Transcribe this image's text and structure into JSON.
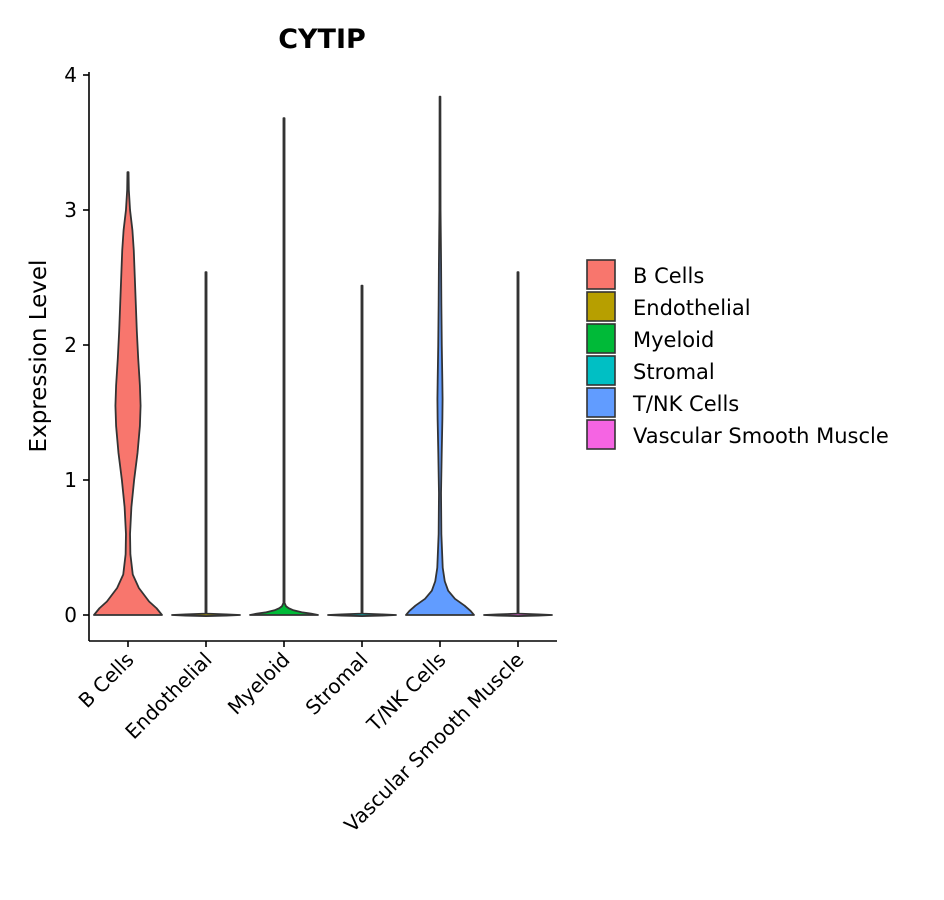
{
  "chart_data": {
    "type": "violin",
    "title": "CYTIP",
    "xlabel": "",
    "ylabel": "Expression Level",
    "ylim": [
      -0.19,
      4.05
    ],
    "yticks": [
      0,
      1,
      2,
      3,
      4
    ],
    "categories": [
      "B Cells",
      "Endothelial",
      "Myeloid",
      "Stromal",
      "T/NK Cells",
      "Vascular Smooth Muscle"
    ],
    "legend": {
      "position": "right",
      "entries": [
        "B Cells",
        "Endothelial",
        "Myeloid",
        "Stromal",
        "T/NK Cells",
        "Vascular Smooth Muscle"
      ]
    },
    "series": [
      {
        "name": "B Cells",
        "color": "#F8766D",
        "max": 3.28,
        "profile": [
          [
            0,
            0.5
          ],
          [
            0.05,
            0.42
          ],
          [
            0.1,
            0.31
          ],
          [
            0.2,
            0.16
          ],
          [
            0.3,
            0.07
          ],
          [
            0.45,
            0.035
          ],
          [
            0.6,
            0.03
          ],
          [
            0.8,
            0.05
          ],
          [
            1.0,
            0.09
          ],
          [
            1.2,
            0.14
          ],
          [
            1.4,
            0.175
          ],
          [
            1.55,
            0.185
          ],
          [
            1.7,
            0.175
          ],
          [
            1.9,
            0.15
          ],
          [
            2.1,
            0.13
          ],
          [
            2.3,
            0.115
          ],
          [
            2.5,
            0.1
          ],
          [
            2.7,
            0.085
          ],
          [
            2.85,
            0.065
          ],
          [
            3.0,
            0.03
          ],
          [
            3.15,
            0.012
          ],
          [
            3.28,
            0.008
          ]
        ]
      },
      {
        "name": "Endothelial",
        "color": "#B79F00",
        "max": 2.54,
        "profile": [
          [
            -0.008,
            0.008
          ],
          [
            -0.004,
            0.3
          ],
          [
            0,
            0.5
          ],
          [
            0.004,
            0.3
          ],
          [
            0.01,
            0.008
          ],
          [
            2.54,
            0.008
          ]
        ]
      },
      {
        "name": "Myeloid",
        "color": "#00BA38",
        "max": 3.68,
        "profile": [
          [
            0,
            0.5
          ],
          [
            0.01,
            0.4
          ],
          [
            0.02,
            0.26
          ],
          [
            0.035,
            0.14
          ],
          [
            0.05,
            0.07
          ],
          [
            0.065,
            0.03
          ],
          [
            0.09,
            0.008
          ],
          [
            3.68,
            0.008
          ]
        ]
      },
      {
        "name": "Stromal",
        "color": "#00BFC4",
        "max": 2.44,
        "profile": [
          [
            -0.008,
            0.008
          ],
          [
            -0.004,
            0.3
          ],
          [
            0,
            0.5
          ],
          [
            0.004,
            0.3
          ],
          [
            0.01,
            0.008
          ],
          [
            2.44,
            0.008
          ]
        ]
      },
      {
        "name": "T/NK Cells",
        "color": "#619CFF",
        "max": 3.84,
        "profile": [
          [
            0,
            0.5
          ],
          [
            0.03,
            0.45
          ],
          [
            0.07,
            0.36
          ],
          [
            0.12,
            0.22
          ],
          [
            0.18,
            0.12
          ],
          [
            0.25,
            0.07
          ],
          [
            0.35,
            0.04
          ],
          [
            0.6,
            0.02
          ],
          [
            0.9,
            0.015
          ],
          [
            1.2,
            0.025
          ],
          [
            1.45,
            0.035
          ],
          [
            1.6,
            0.038
          ],
          [
            1.75,
            0.034
          ],
          [
            2.0,
            0.026
          ],
          [
            2.3,
            0.02
          ],
          [
            2.6,
            0.016
          ],
          [
            2.8,
            0.012
          ],
          [
            3.0,
            0.008
          ],
          [
            3.84,
            0.006
          ]
        ]
      },
      {
        "name": "Vascular Smooth Muscle",
        "color": "#F564E3",
        "max": 2.54,
        "profile": [
          [
            -0.008,
            0.008
          ],
          [
            -0.004,
            0.3
          ],
          [
            0,
            0.5
          ],
          [
            0.004,
            0.3
          ],
          [
            0.01,
            0.008
          ],
          [
            2.54,
            0.008
          ]
        ]
      }
    ]
  }
}
